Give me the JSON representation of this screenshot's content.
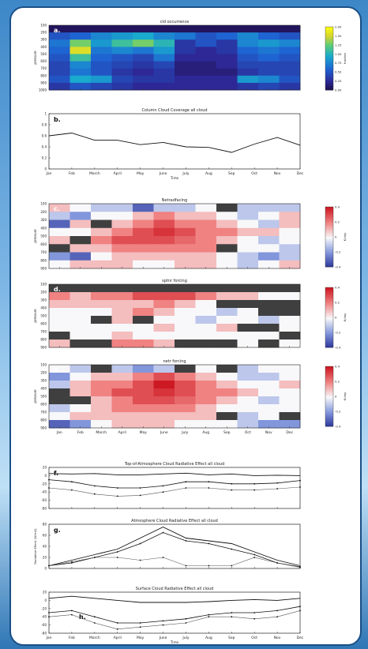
{
  "months": [
    "Jan",
    "Feb",
    "March",
    "April",
    "May",
    "June",
    "July",
    "Aug",
    "Sep",
    "Oct",
    "Nov",
    "Dec"
  ],
  "pressure_levels": [
    "100",
    "200",
    "300",
    "400",
    "500",
    "600",
    "700",
    "800",
    "900",
    "1000"
  ],
  "heatmap_ylabel": "pressure",
  "colors": {
    "dark_panel": "#3f3f3f"
  },
  "chart_data": [
    {
      "type": "heatmap",
      "panel": "a.",
      "title": "cld occurrence",
      "colorbar_label": "fraction",
      "colorbar_ticks": [
        "2.00",
        "1.50",
        "1.25",
        "1.00",
        "0.75",
        "0.50",
        "0.25",
        "0.00"
      ],
      "vmin": 0,
      "vmax": 2,
      "colormap": "parula",
      "values": [
        [
          0.1,
          0.1,
          0.1,
          0.1,
          0.1,
          0.1,
          0.1,
          0.1,
          0.1,
          0.1,
          0.1,
          0.1
        ],
        [
          0.6,
          0.7,
          0.9,
          1.0,
          1.1,
          0.9,
          0.8,
          0.6,
          0.7,
          0.9,
          0.7,
          0.6
        ],
        [
          0.8,
          1.5,
          1.0,
          1.3,
          1.5,
          1.2,
          0.4,
          0.6,
          0.4,
          0.9,
          1.0,
          0.9
        ],
        [
          0.7,
          1.8,
          0.8,
          0.9,
          0.8,
          1.0,
          0.4,
          0.3,
          0.4,
          0.7,
          0.8,
          0.7
        ],
        [
          0.6,
          1.3,
          0.7,
          0.6,
          0.5,
          0.8,
          0.3,
          0.3,
          0.3,
          0.6,
          0.7,
          0.6
        ],
        [
          0.5,
          0.9,
          0.6,
          0.5,
          0.4,
          0.5,
          0.2,
          0.2,
          0.3,
          0.5,
          0.5,
          0.5
        ],
        [
          0.5,
          0.8,
          0.6,
          0.4,
          0.3,
          0.4,
          0.2,
          0.2,
          0.2,
          0.4,
          0.5,
          0.5
        ],
        [
          0.6,
          1.1,
          1.0,
          0.5,
          0.4,
          0.4,
          0.3,
          0.3,
          0.3,
          1.0,
          0.9,
          0.6
        ],
        [
          0.4,
          0.6,
          0.5,
          0.4,
          0.3,
          0.3,
          0.3,
          0.3,
          0.3,
          0.4,
          0.5,
          0.4
        ]
      ]
    },
    {
      "type": "line",
      "panel": "b.",
      "title": "Column Cloud Coverage all cloud",
      "xlabel": "Time",
      "ytick_labels": [
        "0",
        "0.2",
        "0.4",
        "0.6",
        "0.8",
        "1"
      ],
      "ylim": [
        0,
        1
      ],
      "series": [
        {
          "values": [
            0.6,
            0.65,
            0.52,
            0.52,
            0.44,
            0.48,
            0.4,
            0.39,
            0.3,
            0.45,
            0.57,
            0.43
          ]
        }
      ]
    },
    {
      "type": "heatmap",
      "panel": "c.",
      "title": "Netradfacing",
      "colorbar_label": "K/day",
      "colorbar_ticks": [
        "0.4",
        "0.2",
        "0",
        "-0.2",
        "-0.4"
      ],
      "vmin": -0.4,
      "vmax": 0.4,
      "colormap": "diverging",
      "values": [
        [
          0.1,
          0.0,
          -0.1,
          -0.1,
          -0.3,
          -0.1,
          -0.1,
          0.0,
          null,
          -0.1,
          -0.1,
          -0.1
        ],
        [
          -0.1,
          -0.2,
          0.0,
          0.0,
          0.1,
          0.2,
          0.1,
          0.1,
          0.0,
          -0.1,
          0.0,
          0.1
        ],
        [
          -0.3,
          0.1,
          null,
          0.1,
          0.2,
          0.3,
          0.2,
          0.2,
          0.1,
          0.0,
          -0.1,
          0.1
        ],
        [
          0.0,
          0.0,
          0.1,
          0.2,
          0.3,
          0.35,
          0.3,
          0.2,
          0.2,
          0.1,
          0.1,
          0.0
        ],
        [
          0.1,
          null,
          0.2,
          0.3,
          0.3,
          0.3,
          0.25,
          0.2,
          0.1,
          0.0,
          -0.1,
          0.0
        ],
        [
          null,
          0.1,
          0.1,
          0.2,
          0.2,
          0.2,
          0.2,
          0.2,
          null,
          0.0,
          0.0,
          -0.1
        ],
        [
          -0.2,
          -0.3,
          0.0,
          0.1,
          0.1,
          0.1,
          0.1,
          0.1,
          0.0,
          -0.1,
          -0.2,
          -0.1
        ],
        [
          0.0,
          0.1,
          0.1,
          0.1,
          0.0,
          0.0,
          0.1,
          0.1,
          0.0,
          -0.1,
          0.0,
          0.1
        ]
      ]
    },
    {
      "type": "heatmap",
      "panel": "d.",
      "title": "sptnr forcing",
      "colorbar_label": "K/day",
      "colorbar_ticks": [
        "0.4",
        "0.2",
        "0",
        "-0.2",
        "-0.4"
      ],
      "vmin": -0.4,
      "vmax": 0.4,
      "colormap": "diverging",
      "values": [
        [
          null,
          null,
          null,
          null,
          null,
          null,
          null,
          null,
          null,
          null,
          null,
          null
        ],
        [
          0.2,
          0.1,
          0.2,
          0.2,
          0.3,
          0.3,
          0.3,
          0.2,
          0.1,
          0.1,
          0.0,
          0.0
        ],
        [
          0.1,
          0.1,
          0.1,
          0.1,
          0.1,
          0.2,
          0.1,
          0.0,
          null,
          null,
          null,
          null
        ],
        [
          0.0,
          0.0,
          0.0,
          0.1,
          0.2,
          0.1,
          0.0,
          0.0,
          -0.1,
          0.0,
          null,
          null
        ],
        [
          0.0,
          0.0,
          null,
          0.1,
          null,
          0.0,
          0.0,
          -0.1,
          0.0,
          0.0,
          -0.1,
          0.0
        ],
        [
          0.0,
          0.0,
          0.0,
          0.0,
          0.0,
          0.1,
          0.0,
          0.0,
          0.1,
          null,
          null,
          0.0
        ],
        [
          null,
          0.0,
          0.0,
          0.1,
          0.0,
          0.0,
          0.0,
          0.0,
          0.0,
          0.0,
          0.0,
          null
        ],
        [
          0.1,
          null,
          null,
          0.2,
          0.2,
          0.1,
          null,
          null,
          null,
          0.0,
          null,
          0.0
        ]
      ]
    },
    {
      "type": "heatmap",
      "panel": "e.",
      "title": "netr forcing",
      "colorbar_label": "K/day",
      "colorbar_ticks": [
        "0.4",
        "0.2",
        "0",
        "-0.2",
        "-0.4"
      ],
      "vmin": -0.4,
      "vmax": 0.4,
      "colormap": "diverging",
      "values": [
        [
          0.0,
          -0.1,
          null,
          -0.1,
          -0.2,
          -0.1,
          null,
          0.0,
          null,
          -0.1,
          0.0,
          0.0
        ],
        [
          -0.2,
          0.0,
          0.1,
          0.1,
          0.2,
          0.3,
          0.2,
          0.1,
          0.0,
          -0.1,
          -0.1,
          0.0
        ],
        [
          -0.1,
          0.1,
          0.2,
          0.2,
          0.3,
          0.4,
          0.3,
          0.2,
          0.1,
          0.0,
          0.0,
          0.1
        ],
        [
          null,
          0.1,
          0.2,
          0.3,
          0.3,
          0.35,
          0.3,
          0.2,
          0.2,
          0.1,
          0.0,
          0.0
        ],
        [
          null,
          null,
          0.1,
          0.2,
          0.3,
          0.3,
          0.25,
          0.2,
          0.1,
          0.0,
          -0.1,
          0.0
        ],
        [
          -0.1,
          0.0,
          0.1,
          0.2,
          0.2,
          0.2,
          0.2,
          0.1,
          0.0,
          0.0,
          0.0,
          0.0
        ],
        [
          0.0,
          0.1,
          0.1,
          0.1,
          0.1,
          0.1,
          0.1,
          0.1,
          null,
          -0.1,
          0.0,
          null
        ],
        [
          -0.3,
          -0.2,
          0.0,
          0.1,
          0.1,
          0.1,
          0.0,
          0.0,
          0.0,
          -0.1,
          -0.2,
          -0.2
        ]
      ]
    },
    {
      "type": "line",
      "panel": "f.",
      "title": "Top-of-Atmosphere Cloud Radiative Effect all cloud",
      "ytick_labels": [
        "20",
        "0",
        "-20",
        "-40",
        "-60",
        "-80"
      ],
      "ylim": [
        -80,
        20
      ],
      "series": [
        {
          "values": [
            5,
            4,
            5,
            2,
            2,
            4,
            6,
            2,
            4,
            0,
            1,
            0
          ]
        },
        {
          "values": [
            -10,
            -15,
            -25,
            -30,
            -30,
            -25,
            -15,
            -15,
            -20,
            -20,
            -18,
            -12
          ]
        },
        {
          "values": [
            -30,
            -35,
            -45,
            -50,
            -48,
            -40,
            -30,
            -30,
            -35,
            -35,
            -32,
            -28
          ]
        }
      ]
    },
    {
      "type": "line",
      "panel": "g.",
      "title": "Atmosphere Cloud Radiative Effect all cloud",
      "ylabel": "Radiative Effect (W/m2)",
      "ytick_labels": [
        "80",
        "60",
        "40",
        "20",
        "0"
      ],
      "ylim": [
        0,
        80
      ],
      "series": [
        {
          "values": [
            5,
            15,
            25,
            35,
            55,
            75,
            55,
            50,
            45,
            30,
            15,
            5
          ]
        },
        {
          "values": [
            5,
            10,
            20,
            30,
            45,
            65,
            50,
            45,
            35,
            25,
            10,
            3
          ]
        },
        {
          "values": [
            5,
            12,
            20,
            20,
            15,
            20,
            5,
            5,
            5,
            20,
            10,
            2
          ]
        }
      ]
    },
    {
      "type": "line",
      "panel": "h.",
      "title": "Surface Cloud Radiative Effect all cloud",
      "xlabel": "Time",
      "ytick_labels": [
        "20",
        "0",
        "-20",
        "-40",
        "-60",
        "-80"
      ],
      "ylim": [
        -80,
        20
      ],
      "series": [
        {
          "values": [
            5,
            10,
            5,
            0,
            -5,
            -5,
            -5,
            -3,
            0,
            2,
            0,
            5
          ]
        },
        {
          "values": [
            -30,
            -25,
            -40,
            -55,
            -55,
            -50,
            -45,
            -35,
            -30,
            -30,
            -25,
            -15
          ]
        },
        {
          "values": [
            -40,
            -35,
            -55,
            -70,
            -65,
            -60,
            -55,
            -40,
            -40,
            -45,
            -40,
            -25
          ]
        }
      ]
    }
  ]
}
